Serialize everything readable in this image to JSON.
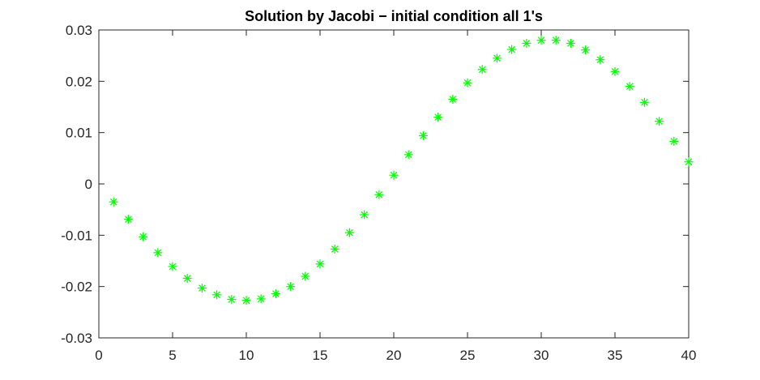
{
  "chart_data": {
    "type": "scatter",
    "title": "Solution by Jacobi − initial condition all 1's",
    "xlabel": "",
    "ylabel": "",
    "xlim": [
      0,
      40
    ],
    "ylim": [
      -0.03,
      0.03
    ],
    "xticks": [
      0,
      5,
      10,
      15,
      20,
      25,
      30,
      35,
      40
    ],
    "xtick_labels": [
      "0",
      "5",
      "10",
      "15",
      "20",
      "25",
      "30",
      "35",
      "40"
    ],
    "yticks": [
      -0.03,
      -0.02,
      -0.01,
      0,
      0.01,
      0.02,
      0.03
    ],
    "ytick_labels": [
      "-0.03",
      "-0.02",
      "-0.01",
      "0",
      "0.01",
      "0.02",
      "0.03"
    ],
    "grid": false,
    "marker": "asterisk",
    "color": "#00ff00",
    "x": [
      1,
      2,
      3,
      4,
      5,
      6,
      7,
      8,
      9,
      10,
      11,
      12,
      13,
      14,
      15,
      16,
      17,
      18,
      19,
      20,
      21,
      22,
      23,
      24,
      25,
      26,
      27,
      28,
      29,
      30,
      31,
      32,
      33,
      34,
      35,
      36,
      37,
      38,
      39,
      40
    ],
    "y": [
      -0.0035,
      -0.0069,
      -0.0103,
      -0.0134,
      -0.0161,
      -0.0184,
      -0.0203,
      -0.0216,
      -0.0225,
      -0.0227,
      -0.0224,
      -0.0214,
      -0.02,
      -0.018,
      -0.0156,
      -0.0127,
      -0.0095,
      -0.006,
      -0.0021,
      0.0017,
      0.0057,
      0.0094,
      0.013,
      0.0165,
      0.0197,
      0.0223,
      0.0245,
      0.0262,
      0.0274,
      0.028,
      0.028,
      0.0274,
      0.0261,
      0.0242,
      0.0219,
      0.019,
      0.0159,
      0.0122,
      0.0083,
      0.0043
    ]
  }
}
